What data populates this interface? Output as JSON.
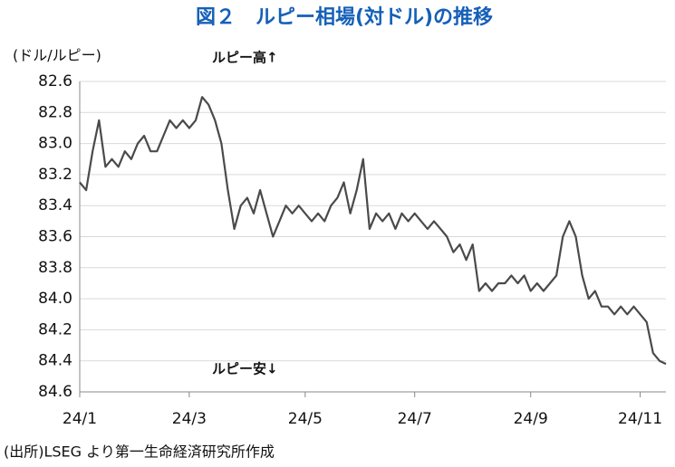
{
  "chart_data": {
    "type": "line",
    "title": "図２　ルピー相場(対ドル)の推移",
    "y_label": "(ドル/ルピー)",
    "annotations": [
      "ルピー高↑",
      "ルピー安↓"
    ],
    "source": "(出所)LSEG より第一生命経済研究所作成",
    "categories": [
      "24/1",
      null,
      null,
      null,
      null,
      null,
      null,
      null,
      null,
      null,
      null,
      null,
      null,
      null,
      null,
      null,
      null,
      "24/3",
      null,
      null,
      null,
      null,
      null,
      null,
      null,
      null,
      null,
      null,
      null,
      null,
      null,
      null,
      null,
      null,
      null,
      "24/5",
      null,
      null,
      null,
      null,
      null,
      null,
      null,
      null,
      null,
      null,
      null,
      null,
      null,
      null,
      null,
      null,
      "24/7",
      null,
      null,
      null,
      null,
      null,
      null,
      null,
      null,
      null,
      null,
      null,
      null,
      null,
      null,
      null,
      null,
      null,
      "24/9",
      null,
      null,
      null,
      null,
      null,
      null,
      null,
      null,
      null,
      null,
      null,
      null,
      null,
      null,
      null,
      null,
      "24/11",
      null,
      null,
      null,
      null
    ],
    "series": [
      {
        "name": "ルピー相場",
        "color": "#4a4a4a",
        "values": [
          83.25,
          83.3,
          83.05,
          82.85,
          83.15,
          83.1,
          83.15,
          83.05,
          83.1,
          83.0,
          82.95,
          83.05,
          83.05,
          82.95,
          82.85,
          82.9,
          82.85,
          82.9,
          82.85,
          82.7,
          82.75,
          82.85,
          83.0,
          83.3,
          83.55,
          83.4,
          83.35,
          83.45,
          83.3,
          83.45,
          83.6,
          83.5,
          83.4,
          83.45,
          83.4,
          83.45,
          83.5,
          83.45,
          83.5,
          83.4,
          83.35,
          83.25,
          83.45,
          83.3,
          83.1,
          83.55,
          83.45,
          83.5,
          83.45,
          83.55,
          83.45,
          83.5,
          83.45,
          83.5,
          83.55,
          83.5,
          83.55,
          83.6,
          83.7,
          83.65,
          83.75,
          83.65,
          83.95,
          83.9,
          83.95,
          83.9,
          83.9,
          83.85,
          83.9,
          83.85,
          83.95,
          83.9,
          83.95,
          83.9,
          83.85,
          83.6,
          83.5,
          83.6,
          83.85,
          84.0,
          83.95,
          84.05,
          84.05,
          84.1,
          84.05,
          84.1,
          84.05,
          84.1,
          84.15,
          84.35,
          84.4,
          84.42
        ]
      }
    ],
    "ylim": [
      82.6,
      84.6
    ],
    "invert_y": true,
    "yticks": [
      82.6,
      82.8,
      {
        "value": 83,
        "label": "83.0"
      },
      83.2,
      83.4,
      83.6,
      83.8,
      {
        "value": 84,
        "label": "84.0"
      },
      84.2,
      84.4,
      84.6
    ],
    "grid": true
  }
}
